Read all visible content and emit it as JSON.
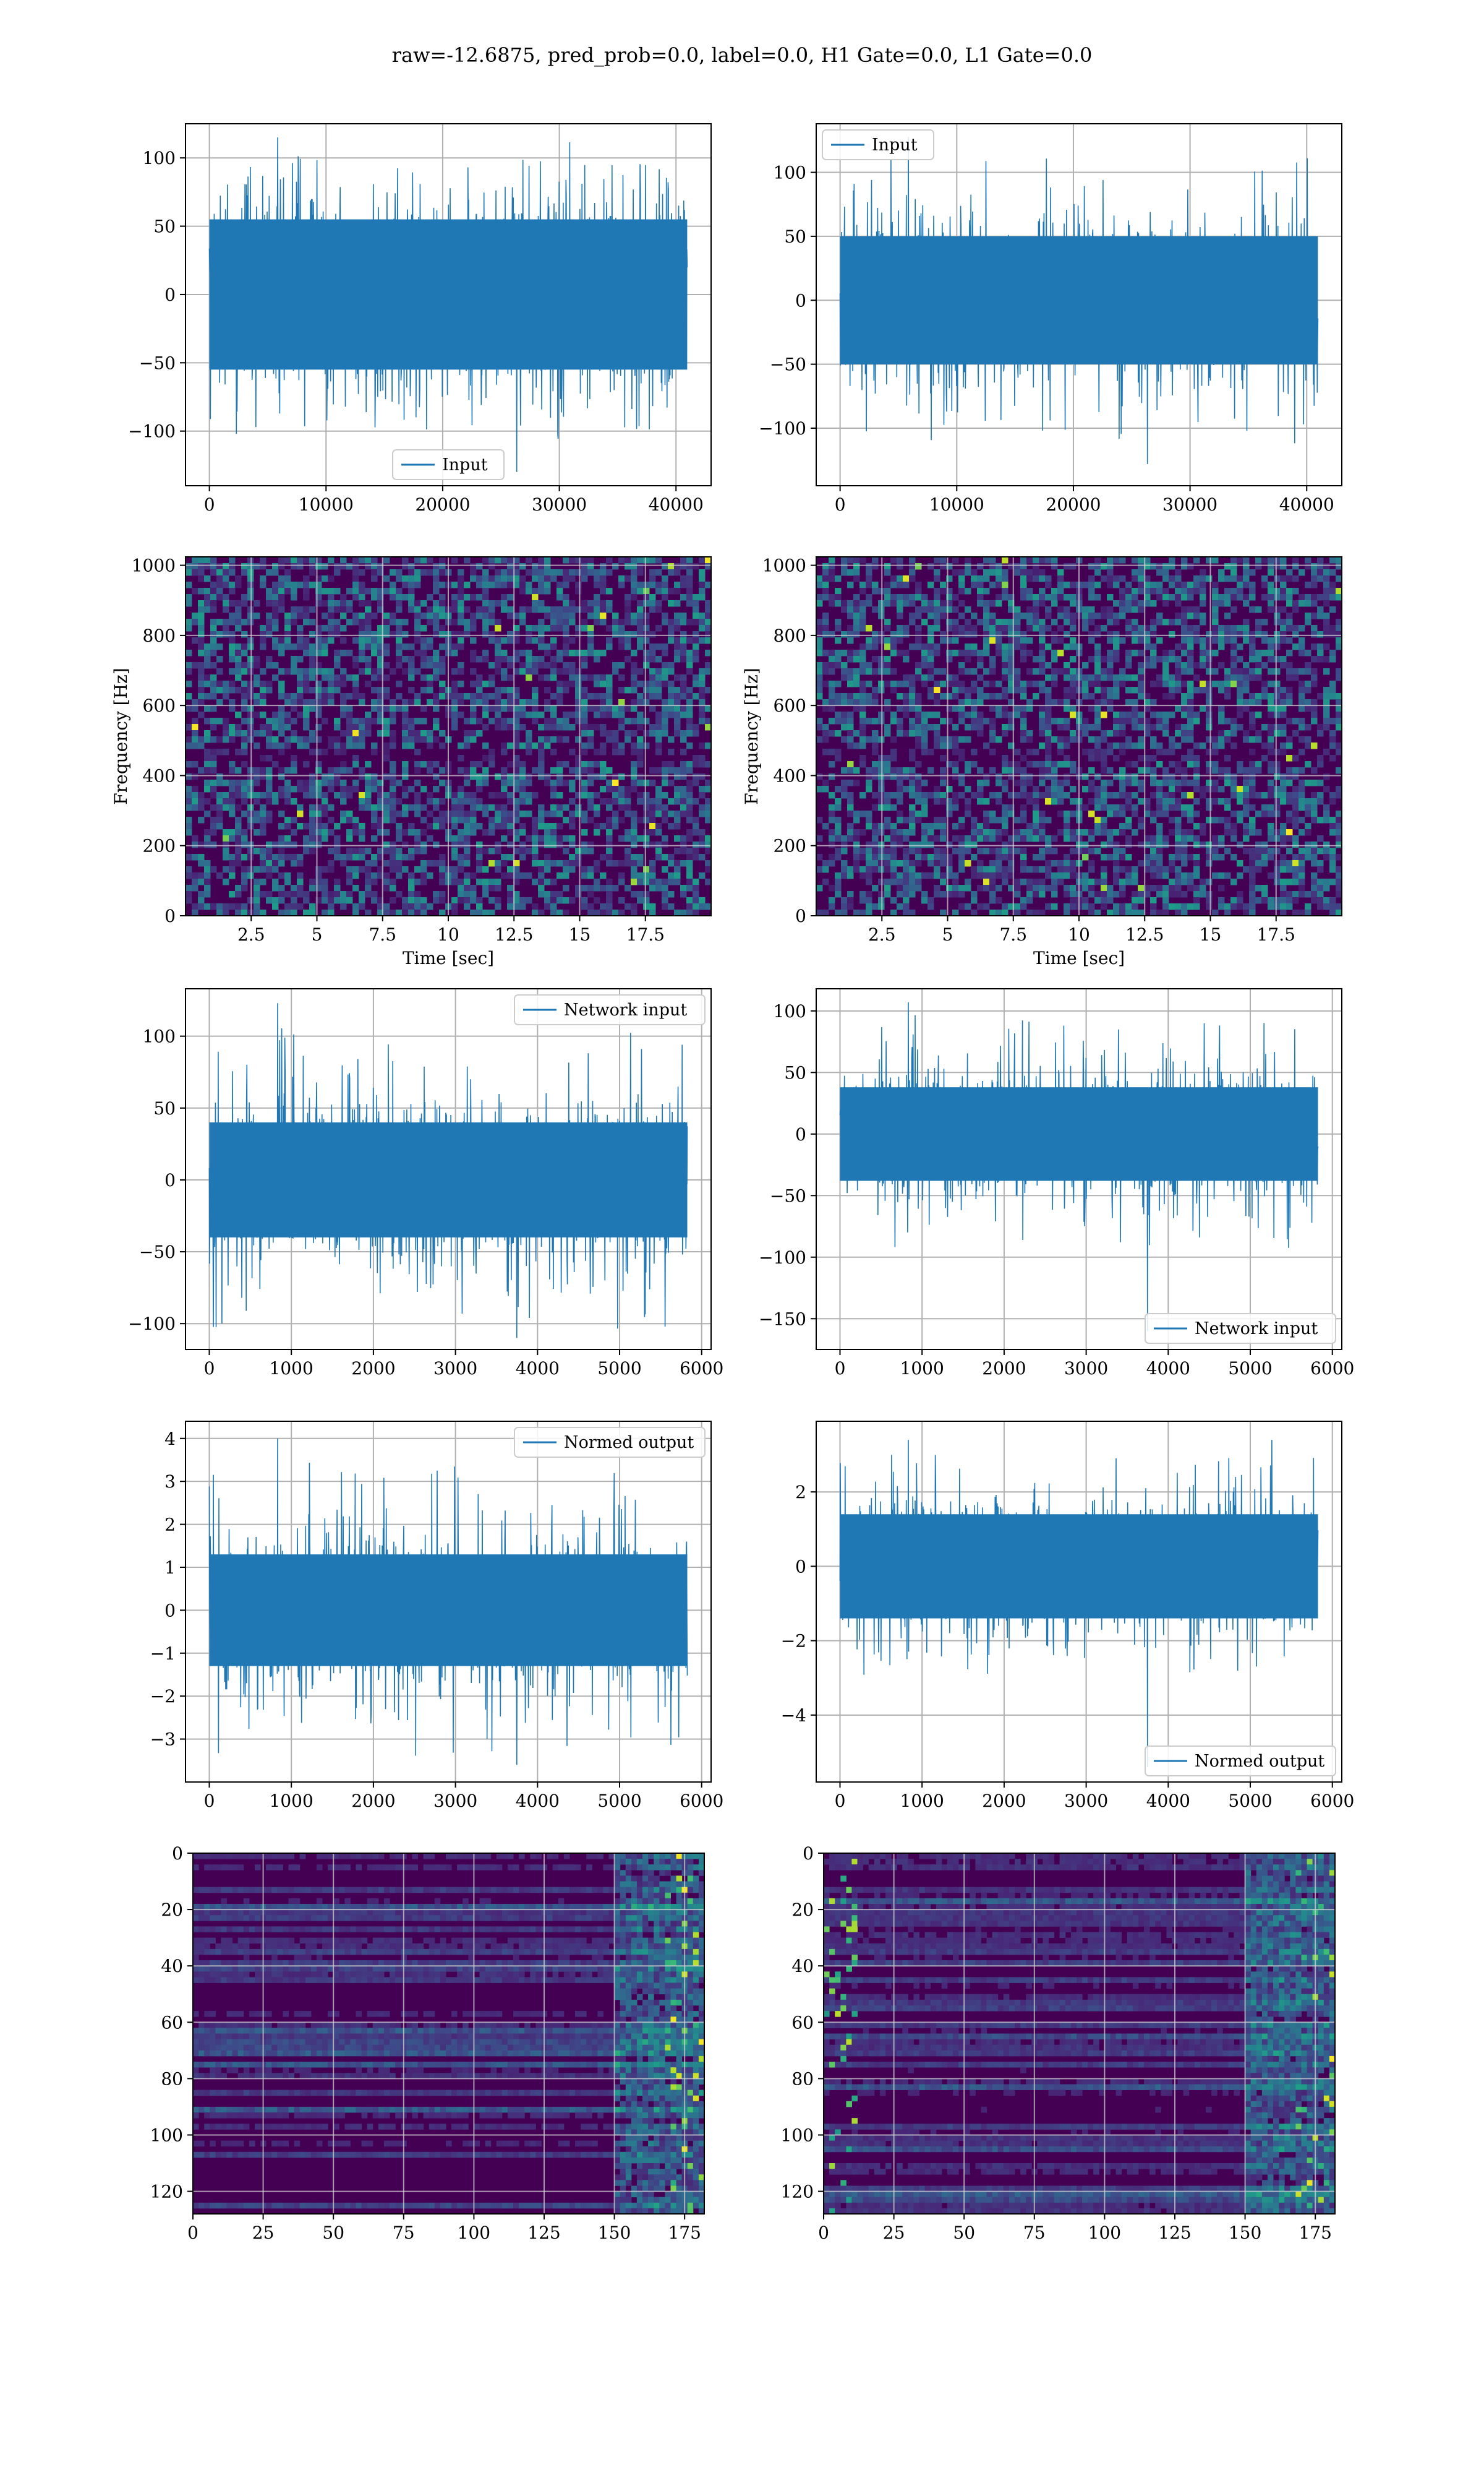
{
  "suptitle": "raw=-12.6875, pred_prob=0.0, label=0.0, H1 Gate=0.0, L1 Gate=0.0",
  "colors": {
    "line": "#1f77b4",
    "grid": "#b0b0b0",
    "viridis_dark": "#440154"
  },
  "chart_data": [
    {
      "id": "h1_input",
      "type": "line",
      "title": "",
      "xlabel": "",
      "ylabel": "",
      "xlim": [
        -2048,
        43008
      ],
      "ylim": [
        -140,
        125
      ],
      "xticks": [
        0,
        10000,
        20000,
        30000,
        40000
      ],
      "yticks": [
        -100,
        -50,
        0,
        50,
        100
      ],
      "grid": true,
      "legend_position": "lower center",
      "series": [
        {
          "name": "Input",
          "n": 40960,
          "x_range": [
            0,
            40960
          ],
          "envelope": [
            -55,
            55
          ],
          "peak_max": 115,
          "peak_min": -130
        }
      ]
    },
    {
      "id": "l1_input",
      "type": "line",
      "title": "",
      "xlabel": "",
      "ylabel": "",
      "xlim": [
        -2048,
        43008
      ],
      "ylim": [
        -145,
        138
      ],
      "xticks": [
        0,
        10000,
        20000,
        30000,
        40000
      ],
      "yticks": [
        -100,
        -50,
        0,
        50,
        100
      ],
      "grid": true,
      "legend_position": "upper left",
      "series": [
        {
          "name": "Input",
          "n": 40960,
          "x_range": [
            0,
            40960
          ],
          "envelope": [
            -50,
            50
          ],
          "peak_max": 128,
          "peak_min": -128
        }
      ]
    },
    {
      "id": "h1_spectrogram",
      "type": "heatmap",
      "title": "",
      "xlabel": "Time [sec]",
      "ylabel": "Frequency [Hz]",
      "xlim": [
        0,
        20
      ],
      "ylim": [
        0,
        1024
      ],
      "xticks": [
        2.5,
        5.0,
        7.5,
        10.0,
        12.5,
        15.0,
        17.5
      ],
      "yticks": [
        0,
        200,
        400,
        600,
        800,
        1000
      ],
      "grid": true,
      "colormap": "viridis",
      "values_note": ""
    },
    {
      "id": "l1_spectrogram",
      "type": "heatmap",
      "title": "",
      "xlabel": "Time [sec]",
      "ylabel": "Frequency [Hz]",
      "xlim": [
        0,
        20
      ],
      "ylim": [
        0,
        1024
      ],
      "xticks": [
        2.5,
        5.0,
        7.5,
        10.0,
        12.5,
        15.0,
        17.5
      ],
      "yticks": [
        0,
        200,
        400,
        600,
        800,
        1000
      ],
      "grid": true,
      "colormap": "viridis"
    },
    {
      "id": "h1_network_input",
      "type": "line",
      "title": "",
      "xlabel": "",
      "ylabel": "",
      "xlim": [
        -290,
        6115
      ],
      "ylim": [
        -118,
        133
      ],
      "xticks": [
        0,
        1000,
        2000,
        3000,
        4000,
        5000,
        6000
      ],
      "yticks": [
        -100,
        -50,
        0,
        50,
        100
      ],
      "grid": true,
      "legend_position": "upper right",
      "series": [
        {
          "name": "Network input",
          "n": 5825,
          "x_range": [
            0,
            5825
          ],
          "envelope": [
            -40,
            40
          ],
          "peak_max": 123,
          "peak_min": -110
        }
      ]
    },
    {
      "id": "l1_network_input",
      "type": "line",
      "title": "",
      "xlabel": "",
      "ylabel": "",
      "xlim": [
        -290,
        6115
      ],
      "ylim": [
        -175,
        118
      ],
      "xticks": [
        0,
        1000,
        2000,
        3000,
        4000,
        5000,
        6000
      ],
      "yticks": [
        -150,
        -100,
        -50,
        0,
        50,
        100
      ],
      "grid": true,
      "legend_position": "lower right",
      "series": [
        {
          "name": "Network input",
          "n": 5825,
          "x_range": [
            0,
            5825
          ],
          "envelope": [
            -38,
            38
          ],
          "peak_max": 107,
          "peak_min": -160
        }
      ]
    },
    {
      "id": "h1_normed_output",
      "type": "line",
      "title": "",
      "xlabel": "",
      "ylabel": "",
      "xlim": [
        -290,
        6115
      ],
      "ylim": [
        -4.0,
        4.4
      ],
      "xticks": [
        0,
        1000,
        2000,
        3000,
        4000,
        5000,
        6000
      ],
      "yticks": [
        -3,
        -2,
        -1,
        0,
        1,
        2,
        3,
        4
      ],
      "grid": true,
      "legend_position": "upper right",
      "series": [
        {
          "name": "Normed output",
          "n": 5825,
          "x_range": [
            0,
            5825
          ],
          "envelope": [
            -1.3,
            1.3
          ],
          "peak_max": 4.0,
          "peak_min": -3.6
        }
      ]
    },
    {
      "id": "l1_normed_output",
      "type": "line",
      "title": "",
      "xlabel": "",
      "ylabel": "",
      "xlim": [
        -290,
        6115
      ],
      "ylim": [
        -5.8,
        3.9
      ],
      "xticks": [
        0,
        1000,
        2000,
        3000,
        4000,
        5000,
        6000
      ],
      "yticks": [
        -4,
        -2,
        0,
        2
      ],
      "grid": true,
      "legend_position": "lower right",
      "series": [
        {
          "name": "Normed output",
          "n": 5825,
          "x_range": [
            0,
            5825
          ],
          "envelope": [
            -1.4,
            1.4
          ],
          "peak_max": 3.4,
          "peak_min": -5.4
        }
      ]
    },
    {
      "id": "h1_feature_map",
      "type": "heatmap",
      "title": "",
      "xlabel": "",
      "ylabel": "",
      "xlim": [
        0,
        182
      ],
      "ylim": [
        128,
        0
      ],
      "rows": 128,
      "cols": 182,
      "xticks": [
        0,
        25,
        50,
        75,
        100,
        125,
        150,
        175
      ],
      "yticks": [
        0,
        20,
        40,
        60,
        80,
        100,
        120
      ],
      "grid": true,
      "colormap": "viridis"
    },
    {
      "id": "l1_feature_map",
      "type": "heatmap",
      "title": "",
      "xlabel": "",
      "ylabel": "",
      "xlim": [
        0,
        182
      ],
      "ylim": [
        128,
        0
      ],
      "rows": 128,
      "cols": 182,
      "xticks": [
        0,
        25,
        50,
        75,
        100,
        125,
        150,
        175
      ],
      "yticks": [
        0,
        20,
        40,
        60,
        80,
        100,
        120
      ],
      "grid": true,
      "colormap": "viridis"
    }
  ]
}
